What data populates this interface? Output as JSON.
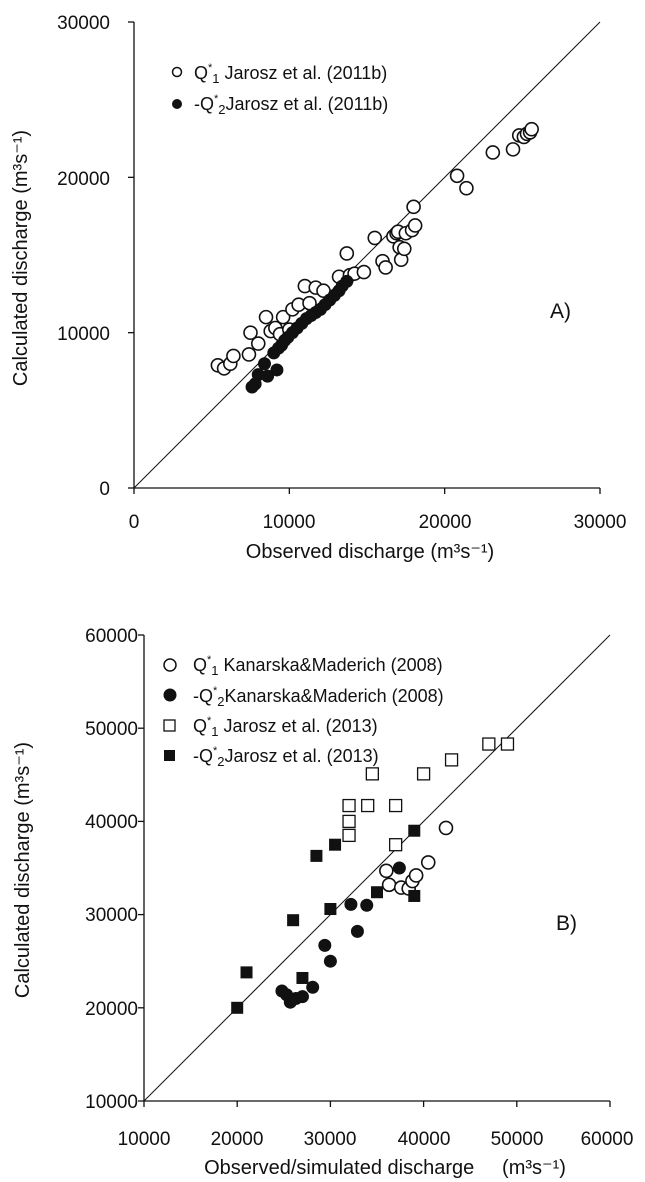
{
  "chart_data": [
    {
      "type": "scatter",
      "panel_label": "A)",
      "xlabel": "Observed discharge (m³s⁻¹)",
      "ylabel": "Calculated discharge  (m³s⁻¹)",
      "xlim": [
        0,
        30000
      ],
      "ylim": [
        0,
        30000
      ],
      "xticks": [
        "0",
        "10000",
        "20000",
        "30000"
      ],
      "yticks": [
        "0",
        "10000",
        "20000",
        "30000"
      ],
      "reference_line": "1:1",
      "legend_position": "top-left",
      "series": [
        {
          "name": "Q*1 Jarosz et al. (2011b)",
          "marker": "open-circle",
          "points": [
            [
              5400,
              7900
            ],
            [
              5800,
              7700
            ],
            [
              6200,
              8000
            ],
            [
              6400,
              8500
            ],
            [
              7400,
              8600
            ],
            [
              7500,
              10000
            ],
            [
              8000,
              9300
            ],
            [
              8500,
              11000
            ],
            [
              8800,
              10100
            ],
            [
              9100,
              10300
            ],
            [
              9400,
              9900
            ],
            [
              9600,
              11000
            ],
            [
              10000,
              10200
            ],
            [
              10200,
              11500
            ],
            [
              10600,
              11800
            ],
            [
              11000,
              13000
            ],
            [
              11300,
              11900
            ],
            [
              11700,
              12900
            ],
            [
              12200,
              12700
            ],
            [
              13200,
              13600
            ],
            [
              13700,
              15100
            ],
            [
              13900,
              13700
            ],
            [
              14200,
              13800
            ],
            [
              14800,
              13900
            ],
            [
              15500,
              16100
            ],
            [
              16000,
              14600
            ],
            [
              16200,
              14200
            ],
            [
              16700,
              16200
            ],
            [
              16900,
              16400
            ],
            [
              17000,
              16500
            ],
            [
              17100,
              15500
            ],
            [
              17200,
              14700
            ],
            [
              17400,
              15400
            ],
            [
              17500,
              16400
            ],
            [
              17900,
              16600
            ],
            [
              18000,
              18100
            ],
            [
              18100,
              16900
            ],
            [
              20800,
              20100
            ],
            [
              21400,
              19300
            ],
            [
              23100,
              21600
            ],
            [
              24400,
              21800
            ],
            [
              24800,
              22700
            ],
            [
              25100,
              22600
            ],
            [
              25300,
              22800
            ],
            [
              25500,
              22900
            ],
            [
              25600,
              23100
            ]
          ]
        },
        {
          "name": "-Q*2 Jarosz et al. (2011b)",
          "marker": "filled-circle",
          "points": [
            [
              7600,
              6500
            ],
            [
              7800,
              6700
            ],
            [
              8000,
              7300
            ],
            [
              8400,
              8000
            ],
            [
              8600,
              7200
            ],
            [
              9000,
              8700
            ],
            [
              9200,
              7600
            ],
            [
              9300,
              9000
            ],
            [
              9500,
              9200
            ],
            [
              9700,
              9500
            ],
            [
              9900,
              9700
            ],
            [
              10200,
              10000
            ],
            [
              10500,
              10300
            ],
            [
              10800,
              10600
            ],
            [
              11100,
              10900
            ],
            [
              11400,
              11100
            ],
            [
              11700,
              11300
            ],
            [
              12000,
              11500
            ],
            [
              12300,
              11800
            ],
            [
              12600,
              12100
            ],
            [
              12900,
              12400
            ],
            [
              13200,
              12700
            ],
            [
              13400,
              13000
            ],
            [
              13700,
              13300
            ]
          ]
        }
      ]
    },
    {
      "type": "scatter",
      "panel_label": "B)",
      "xlabel": "Observed/simulated discharge     (m³s⁻¹)",
      "ylabel": "Calculated discharge  (m³s⁻¹)",
      "xlim": [
        10000,
        60000
      ],
      "ylim": [
        10000,
        60000
      ],
      "xticks": [
        "10000",
        "20000",
        "30000",
        "40000",
        "50000",
        "60000"
      ],
      "yticks": [
        "10000",
        "20000",
        "30000",
        "40000",
        "50000",
        "60000"
      ],
      "reference_line": "1:1",
      "legend_position": "top-left",
      "series": [
        {
          "name": "Q*1 Kanarska&Maderich (2008)",
          "marker": "open-circle",
          "points": [
            [
              36000,
              34700
            ],
            [
              36300,
              33200
            ],
            [
              37600,
              32900
            ],
            [
              38400,
              32800
            ],
            [
              38800,
              33600
            ],
            [
              39200,
              34200
            ],
            [
              40500,
              35600
            ],
            [
              42400,
              39300
            ]
          ]
        },
        {
          "name": "-Q*2 Kanarska&Maderich (2008)",
          "marker": "filled-circle",
          "points": [
            [
              24800,
              21800
            ],
            [
              25300,
              21400
            ],
            [
              25700,
              20600
            ],
            [
              26300,
              21000
            ],
            [
              27000,
              21200
            ],
            [
              28100,
              22200
            ],
            [
              29400,
              26700
            ],
            [
              30000,
              25000
            ],
            [
              32200,
              31100
            ],
            [
              32900,
              28200
            ],
            [
              33900,
              31000
            ],
            [
              37400,
              35000
            ]
          ]
        },
        {
          "name": "Q*1 Jarosz et al. (2013)",
          "marker": "open-square",
          "points": [
            [
              32000,
              38500
            ],
            [
              32000,
              40000
            ],
            [
              32000,
              41700
            ],
            [
              34000,
              41700
            ],
            [
              34500,
              45100
            ],
            [
              37000,
              37500
            ],
            [
              37000,
              41700
            ],
            [
              40000,
              45100
            ],
            [
              43000,
              46600
            ],
            [
              47000,
              48300
            ],
            [
              49000,
              48300
            ]
          ]
        },
        {
          "name": "-Q*2 Jarosz et al. (2013)",
          "marker": "filled-square",
          "points": [
            [
              20000,
              20000
            ],
            [
              21000,
              23800
            ],
            [
              26000,
              29400
            ],
            [
              27000,
              23200
            ],
            [
              28500,
              36300
            ],
            [
              30000,
              30600
            ],
            [
              30500,
              37500
            ],
            [
              35000,
              32400
            ],
            [
              39000,
              39000
            ],
            [
              39000,
              32000
            ]
          ]
        }
      ]
    }
  ],
  "legend": {
    "a": [
      {
        "sign": "",
        "q": "Q",
        "sup": "*",
        "sub": "1",
        "text": " Jarosz et al. (2011b)"
      },
      {
        "sign": "-",
        "q": "Q",
        "sup": "*",
        "sub": "2",
        "text": "Jarosz et al. (2011b)"
      }
    ],
    "b": [
      {
        "sign": "",
        "q": "Q",
        "sup": "*",
        "sub": "1",
        "text": " Kanarska&Maderich (2008)"
      },
      {
        "sign": "-",
        "q": "Q",
        "sup": "*",
        "sub": "2",
        "text": "Kanarska&Maderich (2008)"
      },
      {
        "sign": "",
        "q": "Q",
        "sup": "*",
        "sub": "1",
        "text": " Jarosz et al. (2013)"
      },
      {
        "sign": "-",
        "q": "Q",
        "sup": "*",
        "sub": "2",
        "text": "Jarosz et al. (2013)"
      }
    ]
  },
  "colors": {
    "axis": "#111111",
    "marker": "#111111",
    "background": "#ffffff"
  }
}
